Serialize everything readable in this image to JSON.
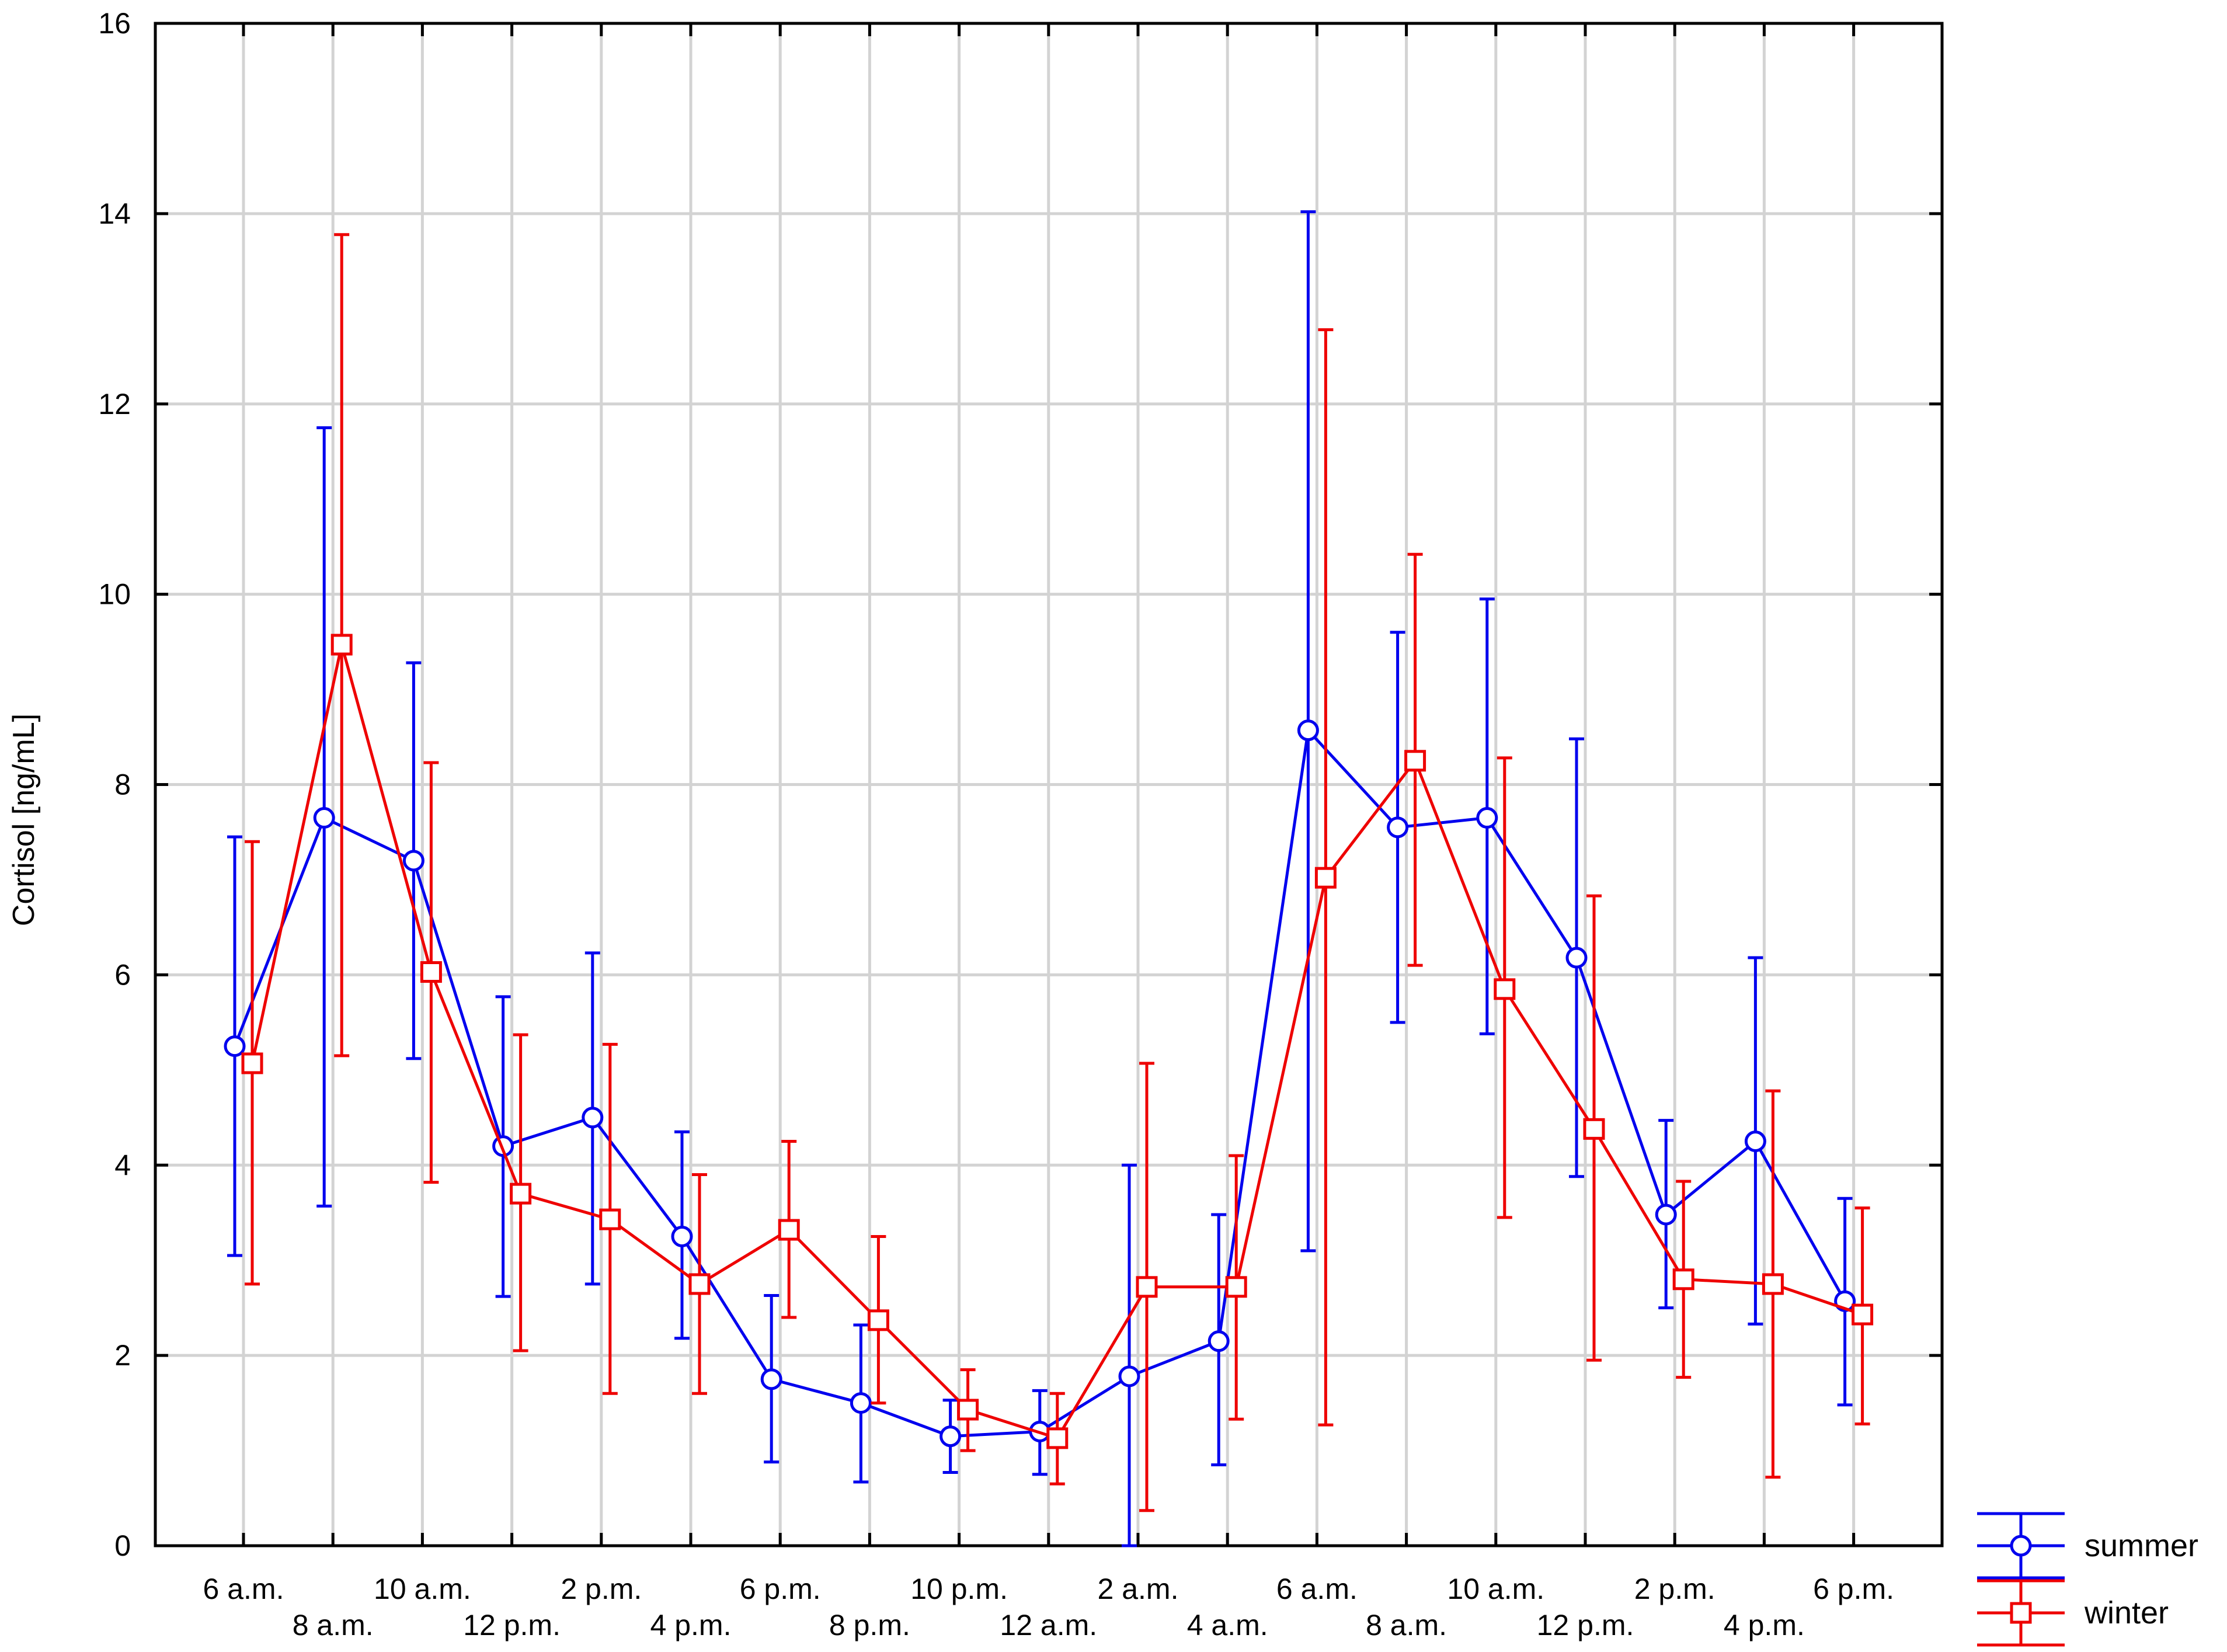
{
  "chart_data": {
    "type": "line",
    "ylabel": "Cortisol [ng/mL]",
    "xlabel": "",
    "ylim": [
      0,
      16
    ],
    "yticks": [
      0,
      2,
      4,
      6,
      8,
      10,
      12,
      14,
      16
    ],
    "grid": true,
    "legend_position": "bottom-right",
    "categories": [
      "6 a.m.",
      "8 a.m.",
      "10 a.m.",
      "12 p.m.",
      "2 p.m.",
      "4 p.m.",
      "6 p.m.",
      "8 p.m.",
      "10 p.m.",
      "12 a.m.",
      "2 a.m.",
      "4 a.m.",
      "6 a.m.",
      "8 a.m.",
      "10 a.m.",
      "12 p.m.",
      "2 p.m.",
      "4 p.m.",
      "6 p.m."
    ],
    "series": [
      {
        "name": "summer",
        "color": "#0000ee",
        "marker": "circle",
        "values": [
          5.25,
          7.65,
          7.2,
          4.2,
          4.5,
          3.25,
          1.75,
          1.5,
          1.15,
          1.2,
          1.78,
          2.15,
          8.57,
          7.55,
          7.65,
          6.18,
          3.48,
          4.25,
          2.57
        ],
        "lower": [
          3.05,
          3.57,
          5.12,
          2.62,
          2.75,
          2.18,
          0.88,
          0.67,
          0.77,
          0.75,
          0.0,
          0.85,
          3.1,
          5.5,
          5.38,
          3.88,
          2.5,
          2.33,
          1.48
        ],
        "upper": [
          7.45,
          11.75,
          9.28,
          5.77,
          6.23,
          4.35,
          2.63,
          2.32,
          1.53,
          1.63,
          4.0,
          3.48,
          14.02,
          9.6,
          9.95,
          8.48,
          4.47,
          6.18,
          3.65
        ]
      },
      {
        "name": "winter",
        "color": "#ee0000",
        "marker": "square",
        "values": [
          5.07,
          9.47,
          6.03,
          3.7,
          3.43,
          2.75,
          3.32,
          2.37,
          1.43,
          1.13,
          2.72,
          2.72,
          7.02,
          8.25,
          5.85,
          4.38,
          2.8,
          2.75,
          2.43
        ],
        "lower": [
          2.75,
          5.15,
          3.82,
          2.05,
          1.6,
          1.6,
          2.4,
          1.5,
          1.0,
          0.65,
          0.37,
          1.33,
          1.27,
          6.1,
          3.45,
          1.95,
          1.77,
          0.72,
          1.28
        ],
        "upper": [
          7.4,
          13.78,
          8.23,
          5.37,
          5.27,
          3.9,
          4.25,
          3.25,
          1.85,
          1.6,
          5.07,
          4.1,
          12.78,
          10.42,
          8.28,
          6.83,
          3.83,
          4.78,
          3.55
        ]
      }
    ]
  }
}
